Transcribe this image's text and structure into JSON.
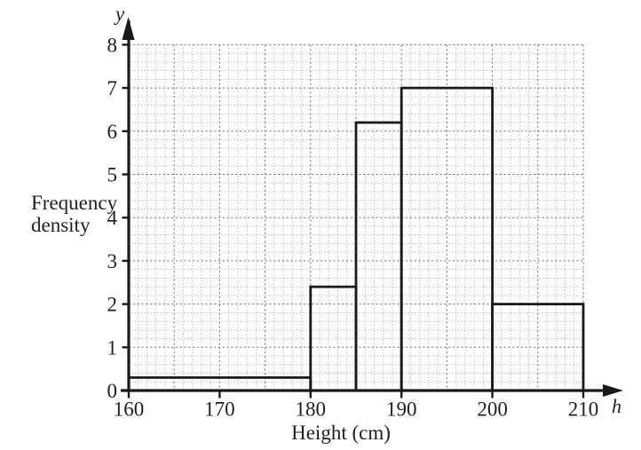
{
  "chart_data": {
    "type": "bar",
    "subtype": "histogram",
    "title": "",
    "xlabel": "Height (cm)",
    "ylabel": "Frequency density",
    "ylabel_line1": "Frequency",
    "ylabel_line2": "density",
    "y_var": "y",
    "x_var": "h",
    "xlim": [
      160,
      210
    ],
    "ylim": [
      0,
      8
    ],
    "x_ticks": [
      160,
      170,
      180,
      190,
      200,
      210
    ],
    "y_ticks": [
      0,
      1,
      2,
      3,
      4,
      5,
      6,
      7,
      8
    ],
    "x_minor_step": 1,
    "y_minor_step": 0.2,
    "grid": "fine dotted squares",
    "legend": "none",
    "bins": [
      {
        "range": [
          160,
          180
        ],
        "frequency_density": 0.3
      },
      {
        "range": [
          180,
          185
        ],
        "frequency_density": 2.4
      },
      {
        "range": [
          185,
          190
        ],
        "frequency_density": 6.2
      },
      {
        "range": [
          190,
          200
        ],
        "frequency_density": 7.0
      },
      {
        "range": [
          200,
          210
        ],
        "frequency_density": 2.0
      }
    ],
    "colors": {
      "ink": "#1a1a1a",
      "bar_fill": "none",
      "grid_minor": "#a3a3a3",
      "grid_major": "#7e7e7e",
      "background": "#ffffff"
    }
  }
}
